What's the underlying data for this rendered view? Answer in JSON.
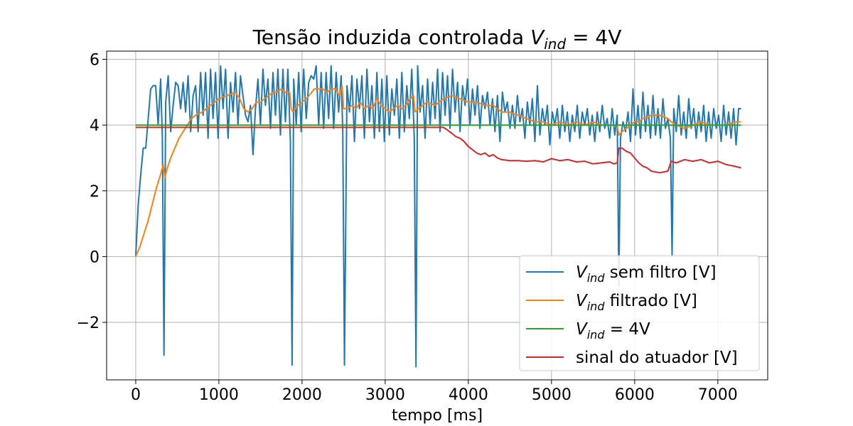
{
  "chart_data": {
    "type": "line",
    "title": {
      "prefix": "Tensão induzida controlada ",
      "var": "V",
      "sub": "ind",
      "suffix": " = 4V"
    },
    "xlabel": "tempo [ms]",
    "ylabel": "",
    "xlim": [
      -350,
      7600
    ],
    "ylim": [
      -3.75,
      6.25
    ],
    "xticks": [
      0,
      1000,
      2000,
      3000,
      4000,
      5000,
      6000,
      7000
    ],
    "yticks": [
      -2,
      0,
      2,
      4,
      6
    ],
    "grid": true,
    "legend_position": "bottom-right",
    "series": [
      {
        "name": "V_ind sem filtro [V]",
        "legend": {
          "var": "V",
          "sub": "ind",
          "rest": " sem filtro [V]"
        },
        "color": "#1f77b4",
        "x": [
          0,
          30,
          60,
          90,
          120,
          150,
          180,
          210,
          240,
          270,
          300,
          320,
          340,
          360,
          390,
          420,
          450,
          480,
          510,
          540,
          570,
          600,
          630,
          660,
          690,
          720,
          750,
          780,
          810,
          840,
          870,
          900,
          930,
          960,
          990,
          1020,
          1050,
          1080,
          1110,
          1140,
          1170,
          1200,
          1230,
          1260,
          1290,
          1320,
          1350,
          1380,
          1410,
          1440,
          1470,
          1500,
          1530,
          1560,
          1590,
          1620,
          1650,
          1680,
          1710,
          1740,
          1770,
          1800,
          1830,
          1860,
          1880,
          1900,
          1930,
          1960,
          1990,
          2020,
          2050,
          2080,
          2110,
          2140,
          2170,
          2200,
          2230,
          2260,
          2290,
          2320,
          2350,
          2380,
          2410,
          2440,
          2470,
          2490,
          2510,
          2540,
          2570,
          2600,
          2630,
          2660,
          2690,
          2720,
          2750,
          2780,
          2810,
          2840,
          2870,
          2900,
          2930,
          2960,
          2990,
          3020,
          3050,
          3080,
          3110,
          3140,
          3170,
          3200,
          3230,
          3260,
          3290,
          3320,
          3350,
          3370,
          3390,
          3420,
          3450,
          3480,
          3510,
          3540,
          3570,
          3600,
          3630,
          3660,
          3690,
          3720,
          3750,
          3780,
          3810,
          3840,
          3870,
          3900,
          3930,
          3960,
          3990,
          4020,
          4050,
          4080,
          4110,
          4140,
          4170,
          4200,
          4230,
          4260,
          4290,
          4320,
          4350,
          4380,
          4410,
          4440,
          4470,
          4500,
          4530,
          4560,
          4590,
          4620,
          4650,
          4680,
          4710,
          4740,
          4770,
          4800,
          4830,
          4860,
          4890,
          4920,
          4950,
          4980,
          5010,
          5040,
          5070,
          5100,
          5130,
          5160,
          5190,
          5220,
          5250,
          5280,
          5310,
          5340,
          5370,
          5400,
          5430,
          5460,
          5490,
          5520,
          5550,
          5580,
          5610,
          5640,
          5670,
          5700,
          5730,
          5760,
          5790,
          5810,
          5830,
          5860,
          5890,
          5920,
          5950,
          5980,
          6010,
          6040,
          6070,
          6100,
          6130,
          6160,
          6190,
          6220,
          6250,
          6280,
          6310,
          6340,
          6370,
          6400,
          6430,
          6450,
          6470,
          6500,
          6530,
          6560,
          6590,
          6620,
          6650,
          6680,
          6710,
          6740,
          6770,
          6800,
          6830,
          6860,
          6890,
          6920,
          6950,
          6980,
          7010,
          7040,
          7070,
          7100,
          7130,
          7160,
          7190,
          7220,
          7250,
          7280
        ],
        "y": [
          0,
          1.6,
          2.5,
          3.3,
          3.3,
          4.2,
          5.1,
          5.2,
          5.2,
          4.0,
          5.4,
          3.6,
          -3.0,
          4.7,
          5.5,
          3.8,
          4.6,
          5.3,
          5.2,
          4.5,
          5.3,
          4.4,
          5.5,
          3.8,
          4.9,
          5.2,
          3.8,
          5.6,
          4.3,
          5.6,
          3.6,
          5.7,
          4.2,
          5.6,
          3.6,
          5.8,
          4.5,
          5.7,
          3.6,
          5.3,
          4.4,
          5.6,
          4.0,
          5.5,
          4.9,
          4.3,
          4.1,
          4.6,
          3.1,
          4.5,
          5.4,
          4.0,
          5.7,
          4.6,
          5.4,
          3.9,
          5.6,
          4.3,
          5.7,
          3.7,
          5.7,
          4.1,
          5.7,
          3.5,
          -3.3,
          5.4,
          4.0,
          5.6,
          3.8,
          5.7,
          4.2,
          5.3,
          5.5,
          5.4,
          5.8,
          4.0,
          5.6,
          3.9,
          5.6,
          4.2,
          5.8,
          3.9,
          5.6,
          4.4,
          5.5,
          3.8,
          -3.3,
          5.2,
          4.4,
          5.5,
          3.5,
          5.4,
          4.5,
          5.5,
          3.6,
          5.7,
          4.1,
          5.2,
          3.6,
          5.6,
          3.8,
          5.4,
          3.5,
          5.5,
          3.7,
          5.1,
          4.3,
          5.4,
          3.6,
          5.6,
          3.8,
          5.2,
          4.2,
          5.7,
          3.6,
          -3.35,
          5.8,
          4.4,
          5.2,
          3.6,
          5.4,
          4.0,
          5.3,
          4.2,
          5.7,
          3.8,
          5.6,
          4.3,
          5.5,
          3.9,
          5.7,
          4.4,
          5.3,
          3.8,
          5.2,
          4.6,
          5.4,
          4.0,
          5.1,
          4.3,
          5.2,
          3.9,
          4.9,
          4.5,
          5.0,
          4.0,
          4.8,
          3.8,
          4.9,
          3.5,
          5.0,
          4.4,
          4.7,
          3.9,
          4.6,
          3.9,
          4.9,
          4.1,
          4.5,
          3.6,
          4.7,
          4.0,
          4.8,
          3.5,
          5.2,
          3.7,
          4.5,
          4.0,
          4.6,
          3.4,
          4.4,
          4.0,
          4.5,
          3.6,
          4.6,
          3.8,
          4.4,
          3.5,
          4.3,
          3.8,
          4.6,
          3.6,
          4.4,
          4.0,
          4.5,
          3.7,
          4.3,
          3.5,
          4.4,
          3.8,
          4.6,
          3.9,
          4.2,
          3.6,
          4.5,
          3.7,
          4.3,
          -0.9,
          3.6,
          4.1,
          3.8,
          4.4,
          3.5,
          5.1,
          3.7,
          4.6,
          3.6,
          5.0,
          3.8,
          4.6,
          3.6,
          4.9,
          3.7,
          4.5,
          3.6,
          4.8,
          3.9,
          4.2,
          3.6,
          0.0,
          4.5,
          3.8,
          4.9,
          3.7,
          4.4,
          3.6,
          4.8,
          3.9,
          4.5,
          3.6,
          4.4,
          3.8,
          4.6,
          3.5,
          4.4,
          3.6,
          4.5,
          3.9,
          4.3,
          3.5,
          4.6,
          3.7,
          4.4,
          3.6,
          4.5,
          3.4,
          4.5,
          4.5
        ]
      },
      {
        "name": "V_ind filtrado [V]",
        "legend": {
          "var": "V",
          "sub": "ind",
          "rest": " filtrado [V]"
        },
        "color": "#ff7f0e",
        "x": [
          0,
          50,
          100,
          150,
          200,
          250,
          300,
          330,
          350,
          380,
          420,
          470,
          520,
          570,
          620,
          670,
          720,
          800,
          900,
          1000,
          1100,
          1200,
          1250,
          1300,
          1350,
          1400,
          1450,
          1500,
          1550,
          1600,
          1650,
          1700,
          1750,
          1800,
          1850,
          1870,
          1890,
          1950,
          2050,
          2150,
          2250,
          2300,
          2350,
          2400,
          2450,
          2480,
          2500,
          2550,
          2600,
          2650,
          2700,
          2750,
          2800,
          2850,
          2900,
          2950,
          3000,
          3050,
          3100,
          3150,
          3200,
          3250,
          3300,
          3340,
          3360,
          3400,
          3500,
          3600,
          3700,
          3800,
          3900,
          4000,
          4100,
          4200,
          4300,
          4400,
          4500,
          4600,
          4700,
          4800,
          4900,
          5000,
          5100,
          5200,
          5300,
          5400,
          5500,
          5600,
          5700,
          5790,
          5810,
          5850,
          5900,
          5950,
          6000,
          6050,
          6100,
          6200,
          6300,
          6400,
          6440,
          6500,
          6600,
          6700,
          6800,
          6900,
          7000,
          7100,
          7200,
          7280
        ],
        "y": [
          0.0,
          0.3,
          0.7,
          1.1,
          1.6,
          2.1,
          2.5,
          2.8,
          2.4,
          2.7,
          3.0,
          3.3,
          3.6,
          3.8,
          4.0,
          4.2,
          4.3,
          4.4,
          4.6,
          4.8,
          4.9,
          5.0,
          4.8,
          4.5,
          4.4,
          4.5,
          4.7,
          4.7,
          4.8,
          4.9,
          5.0,
          5.0,
          5.1,
          5.0,
          5.0,
          4.5,
          4.4,
          4.6,
          4.8,
          5.1,
          5.1,
          5.0,
          5.1,
          5.1,
          4.9,
          5.2,
          4.5,
          4.5,
          4.6,
          4.5,
          4.7,
          4.5,
          4.6,
          4.5,
          4.8,
          4.6,
          4.5,
          4.4,
          4.5,
          4.6,
          4.5,
          4.6,
          4.8,
          4.9,
          4.4,
          4.5,
          4.7,
          4.6,
          4.8,
          4.9,
          4.8,
          4.7,
          4.7,
          4.6,
          4.6,
          4.4,
          4.4,
          4.3,
          4.2,
          4.1,
          4.1,
          4.0,
          4.1,
          4.0,
          4.1,
          4.0,
          4.1,
          4.0,
          4.0,
          4.0,
          3.7,
          3.8,
          3.9,
          4.0,
          4.1,
          4.1,
          4.2,
          4.3,
          4.3,
          4.2,
          4.1,
          4.0,
          3.9,
          4.0,
          4.1,
          4.0,
          4.0,
          4.0,
          4.1,
          4.1
        ]
      },
      {
        "name": "V_ind = 4V",
        "legend": {
          "var": "V",
          "sub": "ind",
          "rest": " = 4V"
        },
        "color": "#2ca02c",
        "x": [
          0,
          7280
        ],
        "y": [
          4.0,
          4.0
        ]
      },
      {
        "name": "sinal do atuador [V]",
        "legend": {
          "var": "",
          "sub": "",
          "rest": "sinal do atuador [V]"
        },
        "color": "#d62728",
        "x": [
          0,
          500,
          1000,
          1500,
          2000,
          2500,
          3000,
          3500,
          3700,
          3750,
          3800,
          3850,
          3900,
          3950,
          4000,
          4050,
          4100,
          4150,
          4200,
          4250,
          4300,
          4350,
          4400,
          4500,
          4600,
          4700,
          4800,
          4900,
          5000,
          5100,
          5200,
          5300,
          5400,
          5500,
          5600,
          5700,
          5750,
          5790,
          5810,
          5850,
          5900,
          5950,
          6000,
          6050,
          6100,
          6150,
          6200,
          6300,
          6400,
          6440,
          6500,
          6600,
          6700,
          6800,
          6900,
          7000,
          7100,
          7200,
          7280
        ],
        "y": [
          3.93,
          3.93,
          3.93,
          3.93,
          3.93,
          3.93,
          3.93,
          3.93,
          3.93,
          3.85,
          3.75,
          3.65,
          3.6,
          3.5,
          3.35,
          3.25,
          3.15,
          3.1,
          3.15,
          3.05,
          3.1,
          3.0,
          2.95,
          2.92,
          2.92,
          2.9,
          2.92,
          2.88,
          2.98,
          2.92,
          2.95,
          2.88,
          2.9,
          2.82,
          2.85,
          2.88,
          2.82,
          2.85,
          3.3,
          3.3,
          3.2,
          3.15,
          3.0,
          2.85,
          2.75,
          2.7,
          2.6,
          2.55,
          2.6,
          2.9,
          2.85,
          2.95,
          2.9,
          2.95,
          2.85,
          2.9,
          2.8,
          2.75,
          2.7
        ]
      }
    ]
  }
}
